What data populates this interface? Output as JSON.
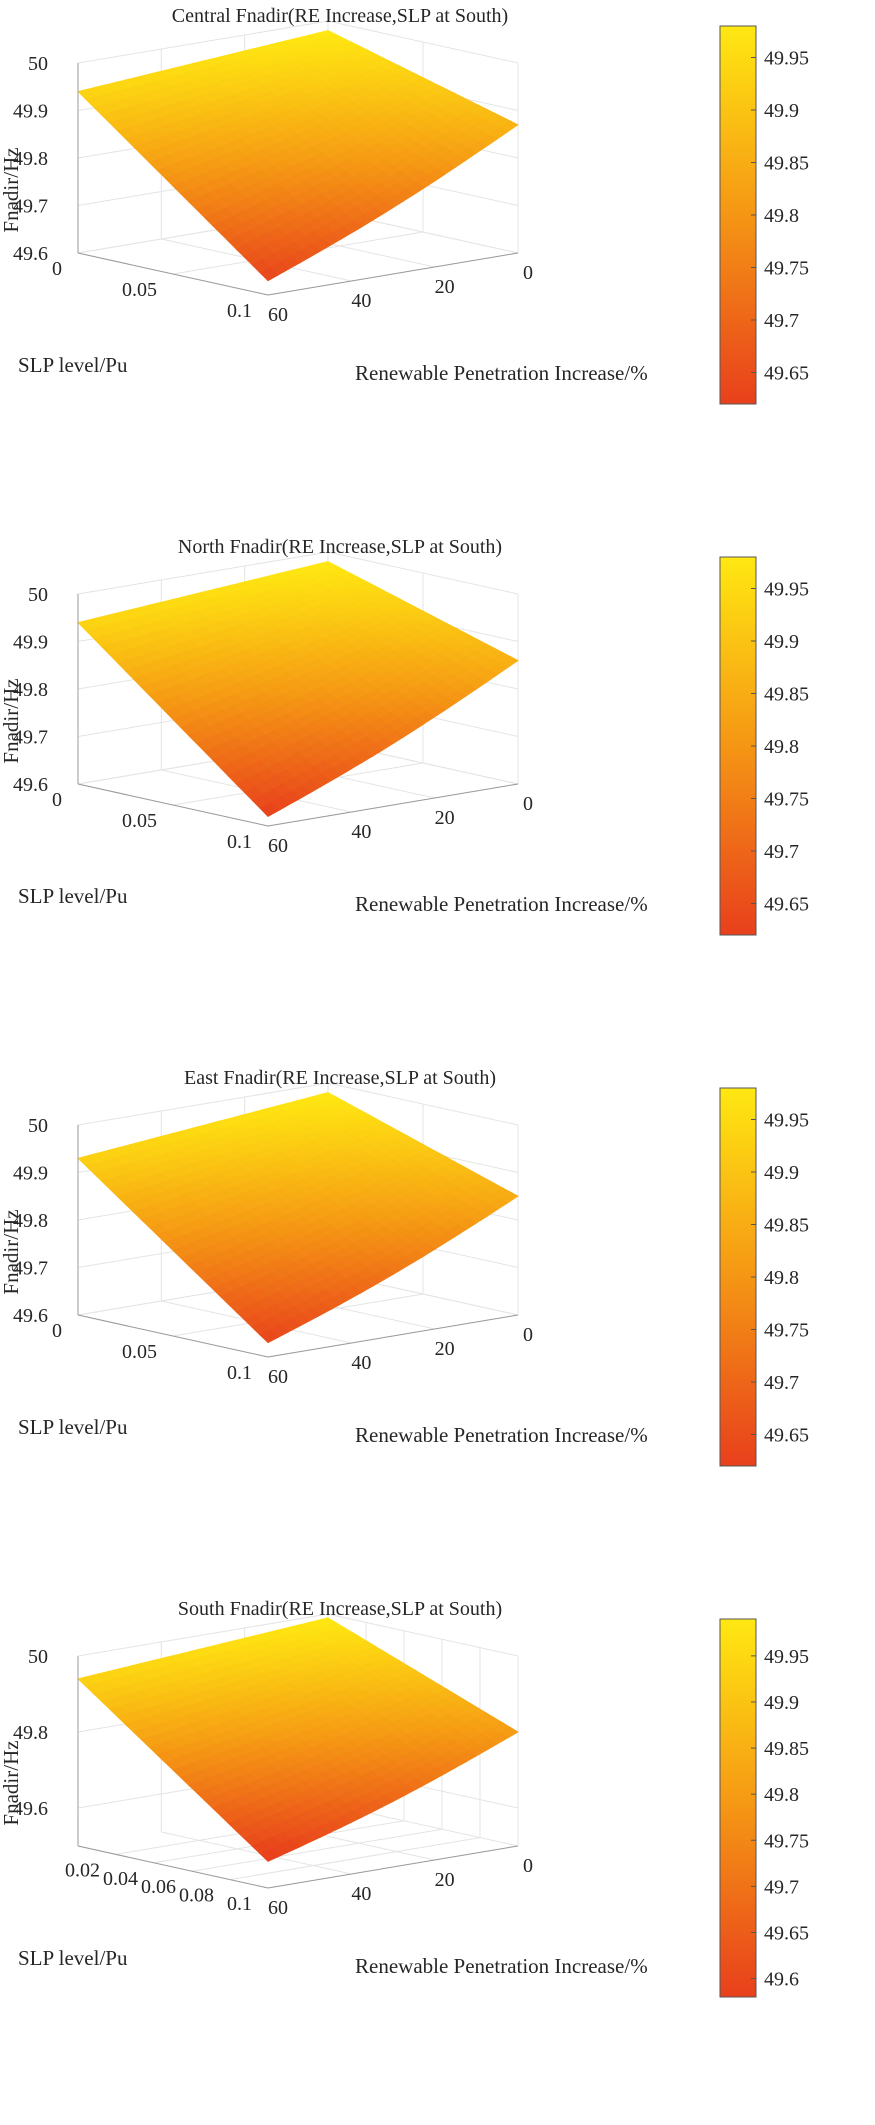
{
  "chart_data": [
    {
      "type": "surface3d",
      "title": "Central Fnadir(RE Increase,SLP at South)",
      "xlabel": "Renewable Penetration Increase/%",
      "ylabel": "SLP level/Pu",
      "zlabel": "Fnadir/Hz",
      "x_ticks": [
        "0",
        "20",
        "40",
        "60"
      ],
      "y_ticks": [
        "0",
        "0.05",
        "0.1"
      ],
      "z_ticks": [
        "49.6",
        "49.7",
        "49.8",
        "49.9",
        "50"
      ],
      "zlim": [
        49.6,
        50
      ],
      "colorbar_ticks": [
        "49.65",
        "49.7",
        "49.75",
        "49.8",
        "49.85",
        "49.9",
        "49.95"
      ],
      "colorbar_range": [
        49.62,
        49.98
      ],
      "corners": {
        "re0_slp0": 49.98,
        "re60_slp0": 49.94,
        "re0_slp01": 49.87,
        "re60_slp01": 49.63
      },
      "colormap": [
        "#e8401c",
        "#ffe812"
      ]
    },
    {
      "type": "surface3d",
      "title": "North Fnadir(RE Increase,SLP at South)",
      "xlabel": "Renewable Penetration Increase/%",
      "ylabel": "SLP level/Pu",
      "zlabel": "Fnadir/Hz",
      "x_ticks": [
        "0",
        "20",
        "40",
        "60"
      ],
      "y_ticks": [
        "0",
        "0.05",
        "0.1"
      ],
      "z_ticks": [
        "49.6",
        "49.7",
        "49.8",
        "49.9",
        "50"
      ],
      "zlim": [
        49.6,
        50
      ],
      "colorbar_ticks": [
        "49.65",
        "49.7",
        "49.75",
        "49.8",
        "49.85",
        "49.9",
        "49.95"
      ],
      "colorbar_range": [
        49.62,
        49.98
      ],
      "corners": {
        "re0_slp0": 49.98,
        "re60_slp0": 49.94,
        "re0_slp01": 49.86,
        "re60_slp01": 49.62
      },
      "colormap": [
        "#e8401c",
        "#ffe812"
      ]
    },
    {
      "type": "surface3d",
      "title": "East Fnadir(RE Increase,SLP at South)",
      "xlabel": "Renewable Penetration Increase/%",
      "ylabel": "SLP level/Pu",
      "zlabel": "Fnadir/Hz",
      "x_ticks": [
        "0",
        "20",
        "40",
        "60"
      ],
      "y_ticks": [
        "0",
        "0.05",
        "0.1"
      ],
      "z_ticks": [
        "49.6",
        "49.7",
        "49.8",
        "49.9",
        "50"
      ],
      "zlim": [
        49.6,
        50
      ],
      "colorbar_ticks": [
        "49.65",
        "49.7",
        "49.75",
        "49.8",
        "49.85",
        "49.9",
        "49.95"
      ],
      "colorbar_range": [
        49.62,
        49.98
      ],
      "corners": {
        "re0_slp0": 49.98,
        "re60_slp0": 49.93,
        "re0_slp01": 49.85,
        "re60_slp01": 49.63
      },
      "colormap": [
        "#e8401c",
        "#ffe812"
      ]
    },
    {
      "type": "surface3d",
      "title": "South Fnadir(RE Increase,SLP at South)",
      "xlabel": "Renewable Penetration Increase/%",
      "ylabel": "SLP level/Pu",
      "zlabel": "Fnadir/Hz",
      "x_ticks": [
        "0",
        "20",
        "40",
        "60"
      ],
      "y_ticks": [
        "0.02",
        "0.04",
        "0.06",
        "0.08",
        "0.1"
      ],
      "z_ticks": [
        "49.6",
        "49.8",
        "50"
      ],
      "zlim": [
        49.5,
        50
      ],
      "colorbar_ticks": [
        "49.6",
        "49.65",
        "49.7",
        "49.75",
        "49.8",
        "49.85",
        "49.9",
        "49.95"
      ],
      "colorbar_range": [
        49.58,
        49.99
      ],
      "corners": {
        "re0_slp0": 49.99,
        "re60_slp0": 49.94,
        "re0_slp01": 49.8,
        "re60_slp01": 49.57
      },
      "colormap": [
        "#e8401c",
        "#ffe812"
      ]
    }
  ]
}
